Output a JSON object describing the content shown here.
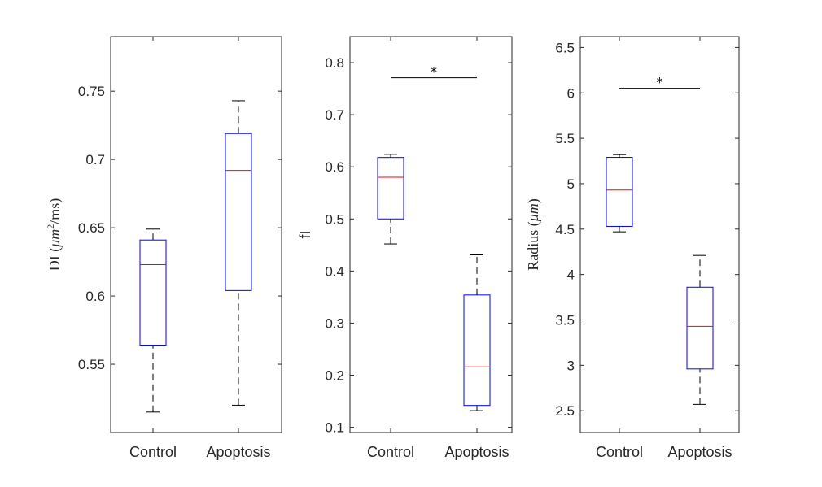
{
  "chart_data": [
    {
      "type": "box",
      "title": "",
      "xlabel": "",
      "ylabel": "DI (μm²/ms)",
      "ylabel_parts": {
        "prefix": "DI ",
        "open": "(",
        "unit": "μm",
        "sup": "2",
        "rest": "/ms)"
      },
      "ylim": [
        0.5,
        0.79
      ],
      "yticks": [
        0.55,
        0.6,
        0.65,
        0.7,
        0.75
      ],
      "ytick_labels": [
        "0.55",
        "0.6",
        "0.65",
        "0.7",
        "0.75"
      ],
      "categories": [
        "Control",
        "Apoptosis"
      ],
      "boxes": [
        {
          "name": "Control",
          "min": 0.515,
          "q1": 0.564,
          "median": 0.623,
          "q3": 0.641,
          "max": 0.649
        },
        {
          "name": "Apoptosis",
          "min": 0.52,
          "q1": 0.604,
          "median": 0.692,
          "q3": 0.719,
          "max": 0.743
        }
      ],
      "significance": []
    },
    {
      "type": "box",
      "title": "",
      "xlabel": "",
      "ylabel": "fI",
      "ylim": [
        0.09,
        0.85
      ],
      "yticks": [
        0.1,
        0.2,
        0.3,
        0.4,
        0.5,
        0.6,
        0.7,
        0.8
      ],
      "ytick_labels": [
        "0.1",
        "0.2",
        "0.3",
        "0.4",
        "0.5",
        "0.6",
        "0.7",
        "0.8"
      ],
      "categories": [
        "Control",
        "Apoptosis"
      ],
      "boxes": [
        {
          "name": "Control",
          "min": 0.452,
          "q1": 0.5,
          "median": 0.58,
          "q3": 0.618,
          "max": 0.624
        },
        {
          "name": "Apoptosis",
          "min": 0.132,
          "q1": 0.142,
          "median": 0.216,
          "q3": 0.354,
          "max": 0.431
        }
      ],
      "significance": [
        {
          "between": [
            "Control",
            "Apoptosis"
          ],
          "y": 0.771,
          "label": "*"
        }
      ]
    },
    {
      "type": "box",
      "title": "",
      "xlabel": "",
      "ylabel": "Radius (μm)",
      "ylabel_parts": {
        "prefix": "Radius ",
        "open": "(",
        "unit": "μm",
        "sup": "",
        "rest": ")"
      },
      "ylim": [
        2.26,
        6.62
      ],
      "yticks": [
        2.5,
        3,
        3.5,
        4,
        4.5,
        5,
        5.5,
        6,
        6.5
      ],
      "ytick_labels": [
        "2.5",
        "3",
        "3.5",
        "4",
        "4.5",
        "5",
        "5.5",
        "6",
        "6.5"
      ],
      "categories": [
        "Control",
        "Apoptosis"
      ],
      "boxes": [
        {
          "name": "Control",
          "min": 4.47,
          "q1": 4.53,
          "median": 4.93,
          "q3": 5.29,
          "max": 5.32
        },
        {
          "name": "Apoptosis",
          "min": 2.57,
          "q1": 2.96,
          "median": 3.43,
          "q3": 3.86,
          "max": 4.21
        }
      ],
      "significance": [
        {
          "between": [
            "Control",
            "Apoptosis"
          ],
          "y": 6.05,
          "label": "*"
        }
      ]
    }
  ],
  "colors": {
    "box": "#0000ff",
    "median": "#ff0000",
    "whisker": "#000000",
    "axes": "#262626"
  }
}
